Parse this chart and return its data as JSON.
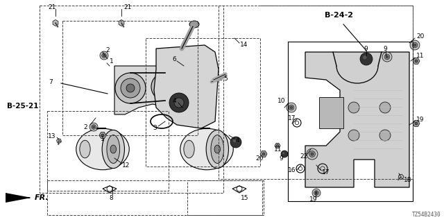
{
  "bg_color": "#ffffff",
  "lc": "#000000",
  "dc": "#444444",
  "label_B2521": "B-25-21",
  "label_B242": "B-24-2",
  "label_FR": "FR.",
  "part_number": "TZ54B2430",
  "figw": 6.4,
  "figh": 3.2,
  "dpi": 100
}
